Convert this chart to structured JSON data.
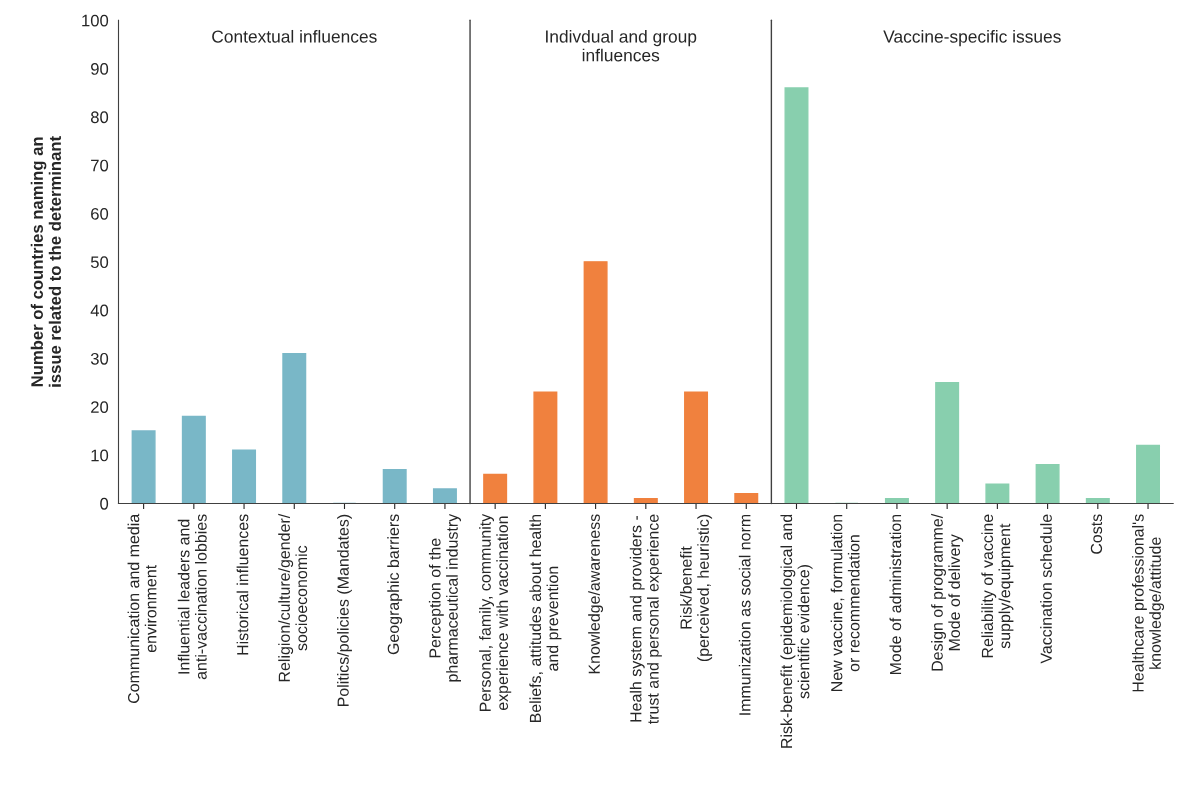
{
  "chart_data": {
    "type": "bar",
    "ylabel": "Number of countries naming an\nissue related to the determinant",
    "categories": [
      "Communication and media\nenvironment",
      "Influential leaders and\nanti-vaccination lobbies",
      "Historical influences",
      "Religion/culture/gender/\nsocioeconomic",
      "Politics/policies (Mandates)",
      "Geographic barriers",
      "Perception of the\npharmaceutical industry",
      "Personal, family, community\nexperience with vaccination",
      "Beliefs, attitudes about health\nand prevention",
      "Knowledge/awareness",
      "Healh system and providers -\ntrust and personal experience",
      "Risk/benefit\n(perceived, heuristic)",
      "Immunization as social norm",
      "Risk-benefit (epidemiological and\nscientific evidence)",
      "New vaccine, formulation\nor recommendation",
      "Mode of administration",
      "Design of programme/\nMode of delivery",
      "Reliability of vaccine\nsupply/equipment",
      "Vaccination schedule",
      "Costs",
      "Healthcare professional's\nknowledge/attitude"
    ],
    "values": [
      15,
      18,
      11,
      31,
      0,
      7,
      3,
      6,
      23,
      50,
      1,
      23,
      2,
      86,
      0,
      1,
      25,
      4,
      8,
      1,
      12
    ],
    "colors": [
      "#79b7c7",
      "#79b7c7",
      "#79b7c7",
      "#79b7c7",
      "#79b7c7",
      "#79b7c7",
      "#79b7c7",
      "#f0813e",
      "#f0813e",
      "#f0813e",
      "#f0813e",
      "#f0813e",
      "#f0813e",
      "#88cfae",
      "#88cfae",
      "#88cfae",
      "#88cfae",
      "#88cfae",
      "#88cfae",
      "#88cfae",
      "#88cfae"
    ],
    "ylim": [
      0,
      100
    ],
    "yticks": [
      0,
      10,
      20,
      30,
      40,
      50,
      60,
      70,
      80,
      90,
      100
    ],
    "annotations": [
      "Contextual influences",
      "Indivdual and group\ninfluences",
      "Vaccine-specific issues"
    ],
    "grid": false,
    "legend": false
  }
}
